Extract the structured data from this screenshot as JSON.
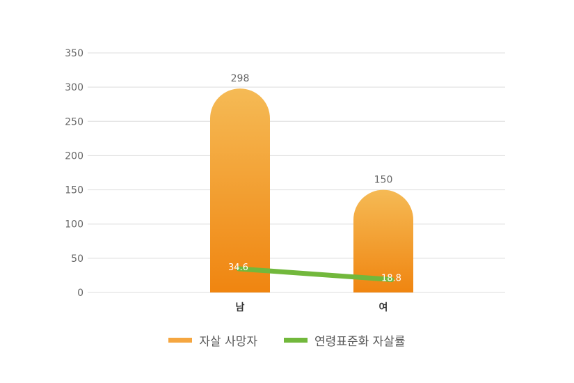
{
  "chart_data": {
    "type": "bar",
    "title": "",
    "xlabel": "",
    "ylabel": "",
    "categories": [
      "남",
      "여"
    ],
    "series": [
      {
        "name": "자살 사망자",
        "type": "bar",
        "values": [
          298,
          150
        ],
        "color": "#F5A640"
      },
      {
        "name": "연령표준화 자살률",
        "type": "line",
        "values": [
          34.6,
          18.8
        ],
        "color": "#72B83C"
      }
    ],
    "ylim": [
      0,
      350
    ],
    "yticks": [
      0,
      50,
      100,
      150,
      200,
      250,
      300,
      350
    ],
    "grid": true,
    "legend_position": "bottom"
  },
  "colors": {
    "bar_top": "#F5BA55",
    "bar_bottom": "#F08510",
    "line": "#72B83C",
    "grid": "#E3E3E3"
  },
  "legend": {
    "items": [
      {
        "label": "자살 사망자",
        "color": "#F5A640"
      },
      {
        "label": "연령표준화 자살률",
        "color": "#72B83C"
      }
    ]
  }
}
